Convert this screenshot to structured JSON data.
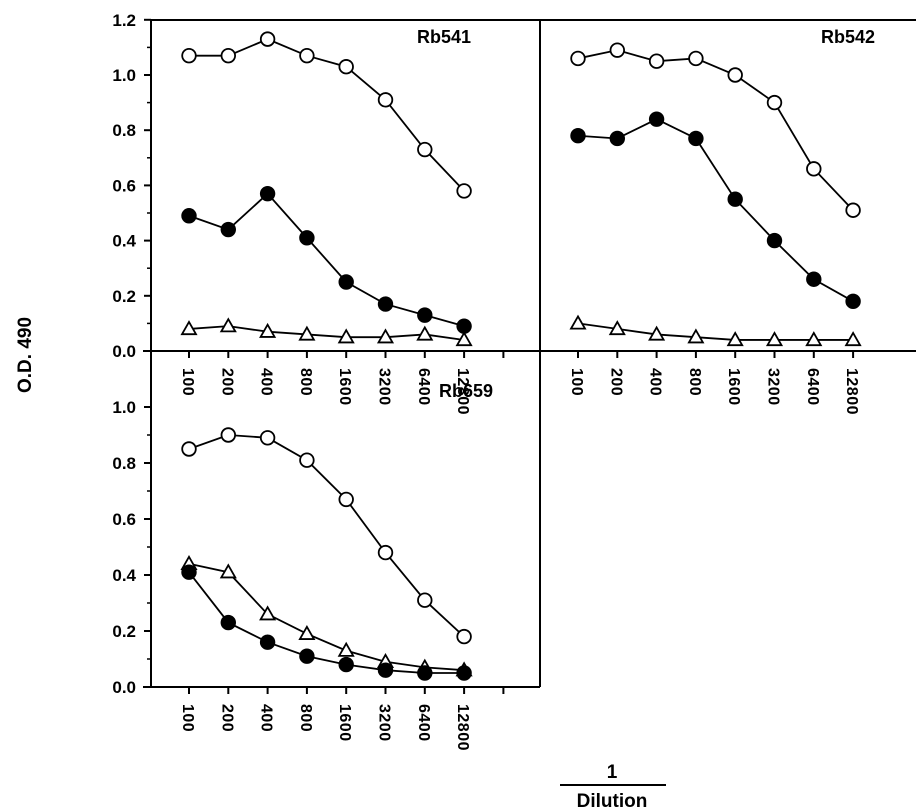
{
  "chart_data": {
    "type": "line",
    "ylabel": "O.D. 490",
    "xlabel_numerator": "1",
    "xlabel_denominator": "Dilution",
    "x_categories": [
      "100",
      "200",
      "400",
      "800",
      "1600",
      "3200",
      "6400",
      "12800"
    ],
    "series_markers": [
      "open-circle",
      "filled-circle",
      "open-triangle"
    ],
    "panels": [
      {
        "label": "Rb541",
        "ylim": [
          0,
          1.2
        ],
        "yticks": [
          "0.0",
          "0.2",
          "0.4",
          "0.6",
          "0.8",
          "1.0",
          "1.2"
        ],
        "series": [
          {
            "marker": "open-circle",
            "values": [
              1.07,
              1.07,
              1.13,
              1.07,
              1.03,
              0.91,
              0.73,
              0.58
            ]
          },
          {
            "marker": "filled-circle",
            "values": [
              0.49,
              0.44,
              0.57,
              0.41,
              0.25,
              0.17,
              0.13,
              0.09
            ]
          },
          {
            "marker": "open-triangle",
            "values": [
              0.08,
              0.09,
              0.07,
              0.06,
              0.05,
              0.05,
              0.06,
              0.04
            ]
          }
        ]
      },
      {
        "label": "Rb542",
        "ylim": [
          0,
          1.2
        ],
        "series": [
          {
            "marker": "open-circle",
            "values": [
              1.06,
              1.09,
              1.05,
              1.06,
              1.0,
              0.9,
              0.66,
              0.51
            ]
          },
          {
            "marker": "filled-circle",
            "values": [
              0.78,
              0.77,
              0.84,
              0.77,
              0.55,
              0.4,
              0.26,
              0.18
            ]
          },
          {
            "marker": "open-triangle",
            "values": [
              0.1,
              0.08,
              0.06,
              0.05,
              0.04,
              0.04,
              0.04,
              0.04
            ]
          }
        ]
      },
      {
        "label": "Rb659",
        "ylim": [
          0,
          1.2
        ],
        "yticks": [
          "0.0",
          "0.2",
          "0.4",
          "0.6",
          "0.8",
          "1.0"
        ],
        "series": [
          {
            "marker": "open-circle",
            "values": [
              0.85,
              0.9,
              0.89,
              0.81,
              0.67,
              0.48,
              0.31,
              0.18
            ]
          },
          {
            "marker": "filled-circle",
            "values": [
              0.41,
              0.23,
              0.16,
              0.11,
              0.08,
              0.06,
              0.05,
              0.05
            ]
          },
          {
            "marker": "open-triangle",
            "values": [
              0.44,
              0.41,
              0.26,
              0.19,
              0.13,
              0.09,
              0.07,
              0.06
            ]
          }
        ]
      }
    ]
  }
}
